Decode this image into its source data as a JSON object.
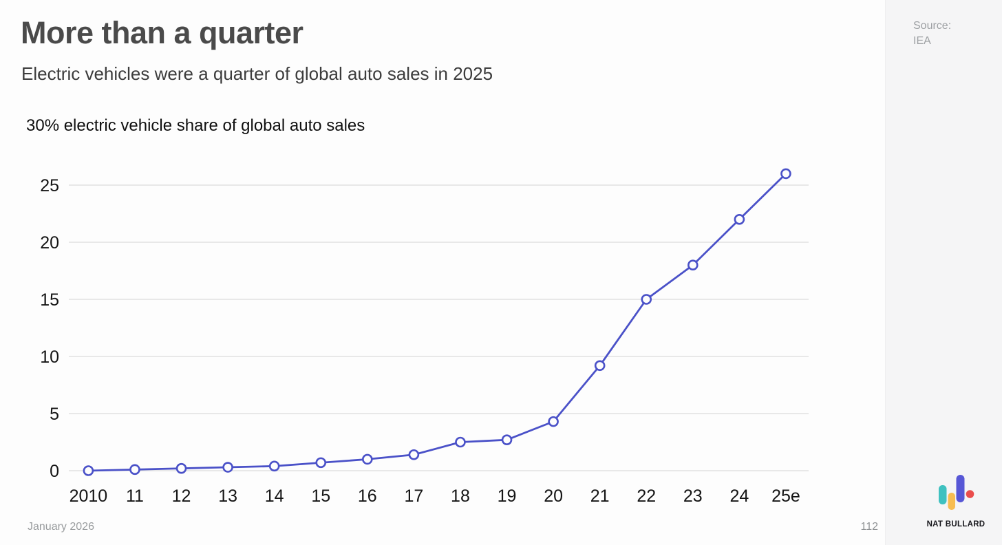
{
  "header": {
    "title": "More than a quarter",
    "subtitle": "Electric vehicles were a quarter of global auto sales in 2025"
  },
  "source": {
    "label": "Source:",
    "name": "IEA"
  },
  "chart_data": {
    "type": "line",
    "title": "30% electric vehicle share of global auto sales",
    "categories": [
      "2010",
      "11",
      "12",
      "13",
      "14",
      "15",
      "16",
      "17",
      "18",
      "19",
      "20",
      "21",
      "22",
      "23",
      "24",
      "25e"
    ],
    "values": [
      0.0,
      0.1,
      0.2,
      0.3,
      0.4,
      0.7,
      1.0,
      1.4,
      2.5,
      2.7,
      4.3,
      9.2,
      15,
      18,
      22,
      26
    ],
    "unit": "%",
    "yticks": [
      0,
      5,
      10,
      15,
      20,
      25
    ],
    "ylim": [
      0,
      30
    ],
    "xlabel": "",
    "ylabel": "electric vehicle share of global auto sales",
    "grid": true,
    "legend": false,
    "line_color": "#4a51c8",
    "grid_color": "#dcdcdc",
    "tick_color": "#141414",
    "marker": "open-circle"
  },
  "footer": {
    "date": "January 2026",
    "page": "112"
  },
  "brand": {
    "name": "NAT BULLARD",
    "logo_colors": {
      "teal": "#3fc1c0",
      "yellow": "#f7bd52",
      "indigo": "#5757d6",
      "red": "#ea4d4c"
    }
  }
}
